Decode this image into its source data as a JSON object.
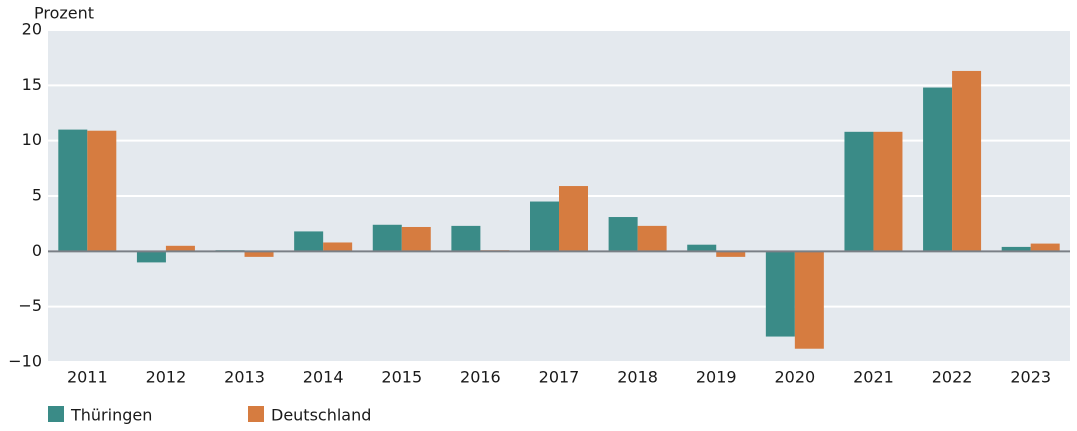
{
  "chart_data": {
    "type": "bar",
    "y_label": "Prozent",
    "categories": [
      "2011",
      "2012",
      "2013",
      "2014",
      "2015",
      "2016",
      "2017",
      "2018",
      "2019",
      "2020",
      "2021",
      "2022",
      "2023"
    ],
    "series": [
      {
        "name": "Thüringen",
        "color": "#3a8b87",
        "values": [
          11.0,
          -1.0,
          0.1,
          1.8,
          2.4,
          2.3,
          4.5,
          3.1,
          0.6,
          -7.7,
          10.8,
          14.8,
          0.4
        ]
      },
      {
        "name": "Deutschland",
        "color": "#d67c40",
        "values": [
          10.9,
          0.5,
          -0.5,
          0.8,
          2.2,
          0.1,
          5.9,
          2.3,
          -0.5,
          -8.8,
          10.8,
          16.3,
          0.7
        ]
      }
    ],
    "ylim": [
      -10,
      20
    ],
    "yticks": [
      {
        "value": -10,
        "label": "−10"
      },
      {
        "value": -5,
        "label": "−5"
      },
      0,
      5,
      10,
      15,
      20
    ],
    "grid": true
  }
}
